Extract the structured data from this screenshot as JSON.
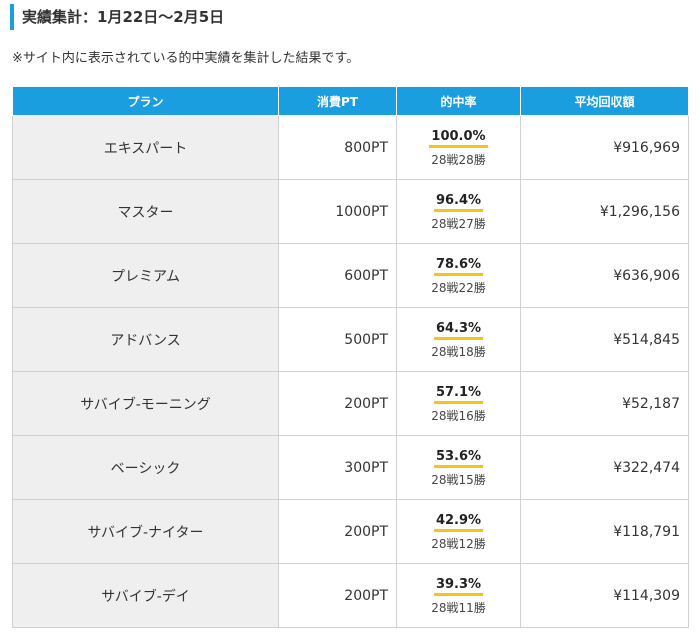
{
  "header": {
    "title": "実績集計：1月22日〜2月5日",
    "note": "※サイト内に表示されている的中実績を集計した結果です。"
  },
  "table": {
    "columns": [
      "プラン",
      "消費PT",
      "的中率",
      "平均回収額"
    ],
    "rows": [
      {
        "plan": "エキスパート",
        "pt": "800PT",
        "rate": "100.0%",
        "record": "28戦28勝",
        "avg": "¥916,969"
      },
      {
        "plan": "マスター",
        "pt": "1000PT",
        "rate": "96.4%",
        "record": "28戦27勝",
        "avg": "¥1,296,156"
      },
      {
        "plan": "プレミアム",
        "pt": "600PT",
        "rate": "78.6%",
        "record": "28戦22勝",
        "avg": "¥636,906"
      },
      {
        "plan": "アドバンス",
        "pt": "500PT",
        "rate": "64.3%",
        "record": "28戦18勝",
        "avg": "¥514,845"
      },
      {
        "plan": "サバイブ-モーニング",
        "pt": "200PT",
        "rate": "57.1%",
        "record": "28戦16勝",
        "avg": "¥52,187"
      },
      {
        "plan": "ベーシック",
        "pt": "300PT",
        "rate": "53.6%",
        "record": "28戦15勝",
        "avg": "¥322,474"
      },
      {
        "plan": "サバイブ-ナイター",
        "pt": "200PT",
        "rate": "42.9%",
        "record": "28戦12勝",
        "avg": "¥118,791"
      },
      {
        "plan": "サバイブ-デイ",
        "pt": "200PT",
        "rate": "39.3%",
        "record": "28戦11勝",
        "avg": "¥114,309"
      }
    ]
  },
  "colors": {
    "accent": "#1a9ee0",
    "highlight": "#f5c518",
    "plan_cell_bg": "#efefef"
  }
}
